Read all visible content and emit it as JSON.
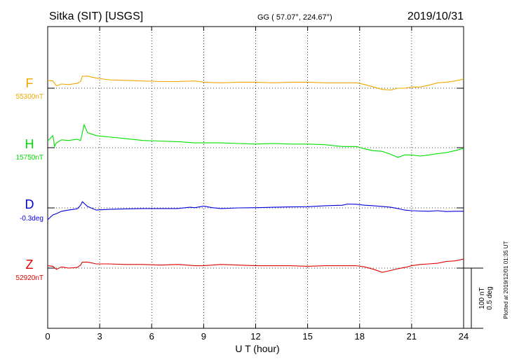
{
  "header": {
    "station": "Sitka (SIT)  [USGS]",
    "coords": "GG ( 57.07°, 224.67°)",
    "date": "2019/10/31"
  },
  "footer": {
    "xlabel": "U T (hour)",
    "plotted_note": "Plotted at 2019/12/01 01:35 UT"
  },
  "scale": {
    "nt": "100 nT",
    "deg": "0.5 deg"
  },
  "colors": {
    "F": "#f0a800",
    "H": "#00e000",
    "D": "#0000e0",
    "Z": "#e00000"
  },
  "chart_data": {
    "type": "line",
    "xlabel": "U T (hour)",
    "xlim": [
      0,
      24
    ],
    "x_ticks": [
      0,
      3,
      6,
      9,
      12,
      15,
      18,
      21,
      24
    ],
    "x_tick_labels": [
      "0",
      "3",
      "6",
      "9",
      "12",
      "15",
      "18",
      "21",
      "24"
    ],
    "grid": "vertical dotted at every 3 hours; horizontal dotted baseline per component",
    "scale_bar": {
      "nT": 100,
      "deg": 0.5
    },
    "series": [
      {
        "name": "F",
        "baseline_label": "55300nT",
        "unit": "nT",
        "baseline": 55300,
        "x": [
          0,
          0.3,
          0.5,
          0.8,
          1.2,
          1.7,
          1.9,
          2.0,
          2.3,
          2.8,
          3.5,
          4.5,
          5.5,
          6.5,
          7.5,
          8.5,
          9.0,
          10.0,
          11.0,
          12.0,
          13.0,
          14.0,
          15.0,
          16.0,
          17.0,
          17.8,
          18.3,
          18.8,
          19.3,
          19.8,
          20.2,
          20.6,
          21.0,
          21.5,
          22.0,
          22.5,
          23.0,
          23.5,
          24.0
        ],
        "values": [
          55313,
          55312,
          55304,
          55307,
          55306,
          55308,
          55311,
          55320,
          55320,
          55317,
          55314,
          55313,
          55312,
          55311,
          55311,
          55312,
          55310,
          55309,
          55310,
          55310,
          55309,
          55310,
          55310,
          55309,
          55309,
          55309,
          55306,
          55302,
          55298,
          55297,
          55300,
          55300,
          55302,
          55302,
          55305,
          55309,
          55310,
          55312,
          55315
        ]
      },
      {
        "name": "H",
        "baseline_label": "15750nT",
        "unit": "nT",
        "baseline": 15750,
        "x": [
          0,
          0.3,
          0.4,
          0.5,
          0.8,
          1.2,
          1.7,
          1.9,
          2.1,
          2.3,
          2.8,
          3.5,
          4.5,
          5.5,
          6.5,
          7.5,
          8.5,
          9.0,
          10.0,
          11.0,
          12.0,
          13.0,
          14.0,
          15.0,
          16.0,
          17.0,
          17.8,
          18.3,
          18.8,
          19.3,
          19.8,
          20.2,
          20.6,
          21.0,
          21.5,
          22.0,
          22.5,
          23.0,
          23.5,
          24.0
        ],
        "values": [
          15761,
          15770,
          15752,
          15758,
          15763,
          15762,
          15764,
          15762,
          15788,
          15775,
          15770,
          15768,
          15765,
          15762,
          15761,
          15760,
          15758,
          15758,
          15758,
          15757,
          15756,
          15757,
          15756,
          15756,
          15755,
          15752,
          15752,
          15748,
          15745,
          15744,
          15739,
          15734,
          15738,
          15738,
          15736,
          15738,
          15740,
          15742,
          15745,
          15749
        ]
      },
      {
        "name": "D",
        "baseline_label": "-0.3deg",
        "unit": "deg",
        "baseline": -0.3,
        "x": [
          0,
          0.3,
          0.5,
          0.8,
          1.2,
          1.7,
          1.9,
          2.0,
          2.3,
          2.8,
          3.5,
          4.5,
          5.5,
          6.5,
          7.5,
          8.2,
          8.5,
          9.0,
          9.5,
          10.0,
          11.0,
          12.0,
          13.0,
          14.0,
          15.0,
          16.0,
          17.0,
          17.3,
          17.8,
          18.3,
          18.8,
          19.3,
          19.8,
          20.2,
          20.6,
          21.0,
          21.5,
          22.0,
          22.5,
          23.0,
          23.5,
          24.0
        ],
        "values": [
          -0.398,
          -0.358,
          -0.348,
          -0.328,
          -0.318,
          -0.308,
          -0.278,
          -0.248,
          -0.288,
          -0.318,
          -0.312,
          -0.308,
          -0.305,
          -0.305,
          -0.305,
          -0.295,
          -0.298,
          -0.285,
          -0.298,
          -0.305,
          -0.3,
          -0.298,
          -0.295,
          -0.292,
          -0.29,
          -0.282,
          -0.278,
          -0.268,
          -0.27,
          -0.278,
          -0.282,
          -0.288,
          -0.295,
          -0.305,
          -0.318,
          -0.323,
          -0.326,
          -0.328,
          -0.323,
          -0.33,
          -0.328,
          -0.328
        ]
      },
      {
        "name": "Z",
        "baseline_label": "52920nT",
        "unit": "nT",
        "baseline": 52920,
        "x": [
          0,
          0.3,
          0.5,
          0.8,
          1.2,
          1.7,
          1.9,
          2.0,
          2.3,
          2.8,
          3.5,
          4.5,
          5.5,
          6.5,
          7.5,
          8.5,
          9.0,
          10.0,
          11.0,
          12.0,
          13.0,
          14.0,
          15.0,
          16.0,
          17.0,
          17.8,
          18.3,
          18.8,
          19.3,
          19.8,
          20.2,
          20.6,
          21.0,
          21.5,
          22.0,
          22.5,
          23.0,
          23.5,
          24.0
        ],
        "values": [
          52924,
          52923,
          52918,
          52922,
          52920,
          52921,
          52925,
          52930,
          52930,
          52927,
          52927,
          52926,
          52926,
          52925,
          52926,
          52924,
          52924,
          52926,
          52925,
          52924,
          52924,
          52924,
          52923,
          52924,
          52924,
          52924,
          52922,
          52918,
          52913,
          52916,
          52919,
          52921,
          52924,
          52926,
          52927,
          52928,
          52931,
          52932,
          52935
        ]
      }
    ]
  }
}
